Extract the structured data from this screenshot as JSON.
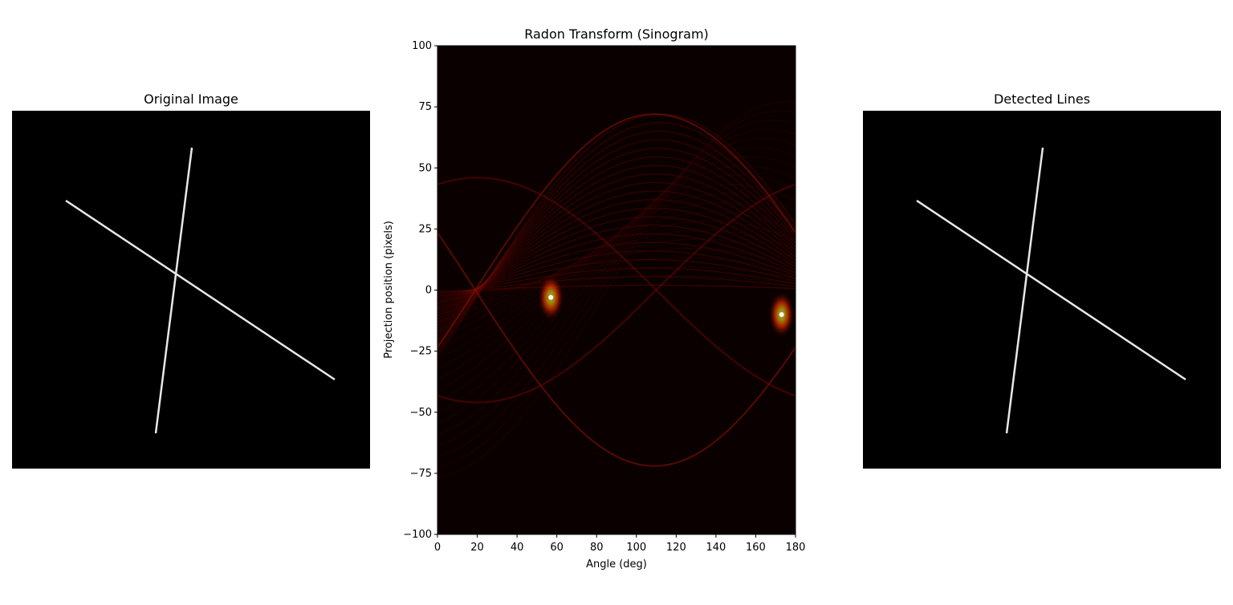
{
  "chart_data": [
    {
      "type": "image",
      "title": "Original Image",
      "lines": [
        {
          "name": "steep",
          "x1": 0.25,
          "y1": 0.4,
          "x2": 0.25,
          "y2": 0.9
        },
        {
          "name": "diagonal",
          "x1": 0.15,
          "y1": 0.25,
          "x2": 0.9,
          "y2": 0.75
        }
      ],
      "line_color": "#e8e8e8",
      "background": "#000000"
    },
    {
      "type": "heatmap",
      "title": "Radon Transform (Sinogram)",
      "xlabel": "Angle (deg)",
      "ylabel": "Projection position (pixels)",
      "xlim": [
        0,
        180
      ],
      "ylim": [
        -100,
        100
      ],
      "xticks": [
        "0",
        "20",
        "40",
        "60",
        "80",
        "100",
        "120",
        "140",
        "160",
        "180"
      ],
      "yticks": [
        "−100",
        "−75",
        "−50",
        "−25",
        "0",
        "25",
        "50",
        "75",
        "100"
      ],
      "colormap": "hot",
      "peaks": [
        {
          "angle": 57,
          "position": -3
        },
        {
          "angle": 173,
          "position": -10
        }
      ]
    },
    {
      "type": "image",
      "title": "Detected Lines",
      "line_color": "#e8e8e8",
      "background": "#000000"
    }
  ],
  "titles": {
    "left": "Original Image",
    "middle": "Radon Transform (Sinogram)",
    "right": "Detected Lines"
  }
}
